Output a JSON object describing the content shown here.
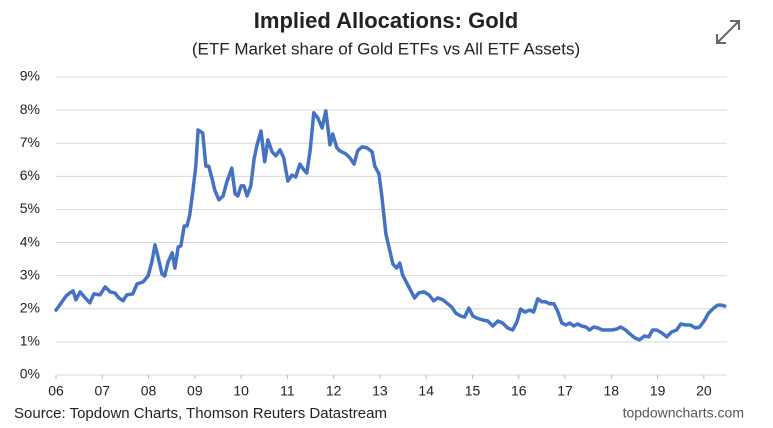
{
  "chart_data": {
    "type": "line",
    "title": "Implied Allocations: Gold",
    "subtitle": "(ETF Market share of Gold ETFs vs All ETF Assets)",
    "source": "Source: Topdown Charts, Thomson Reuters Datastream",
    "credit": "topdowncharts.com",
    "color": "#4472c4",
    "grid": true,
    "xlim": [
      2006,
      2020.5
    ],
    "xticks": [
      {
        "value": 2006,
        "label": "06"
      },
      {
        "value": 2007,
        "label": "07"
      },
      {
        "value": 2008,
        "label": "08"
      },
      {
        "value": 2009,
        "label": "09"
      },
      {
        "value": 2010,
        "label": "10"
      },
      {
        "value": 2011,
        "label": "11"
      },
      {
        "value": 2012,
        "label": "12"
      },
      {
        "value": 2013,
        "label": "13"
      },
      {
        "value": 2014,
        "label": "14"
      },
      {
        "value": 2015,
        "label": "15"
      },
      {
        "value": 2016,
        "label": "16"
      },
      {
        "value": 2017,
        "label": "17"
      },
      {
        "value": 2018,
        "label": "18"
      },
      {
        "value": 2019,
        "label": "19"
      },
      {
        "value": 2020,
        "label": "20"
      }
    ],
    "ylim": [
      0,
      9
    ],
    "yticks": [
      {
        "value": 0,
        "label": "0%"
      },
      {
        "value": 1,
        "label": "1%"
      },
      {
        "value": 2,
        "label": "2%"
      },
      {
        "value": 3,
        "label": "3%"
      },
      {
        "value": 4,
        "label": "4%"
      },
      {
        "value": 5,
        "label": "5%"
      },
      {
        "value": 6,
        "label": "6%"
      },
      {
        "value": 7,
        "label": "7%"
      },
      {
        "value": 8,
        "label": "8%"
      },
      {
        "value": 9,
        "label": "9%"
      }
    ],
    "x": [
      2006.0,
      2006.13,
      2006.22,
      2006.3,
      2006.37,
      2006.43,
      2006.52,
      2006.63,
      2006.73,
      2006.82,
      2006.95,
      2007.06,
      2007.17,
      2007.27,
      2007.36,
      2007.45,
      2007.53,
      2007.66,
      2007.75,
      2007.88,
      2007.99,
      2008.07,
      2008.14,
      2008.2,
      2008.29,
      2008.35,
      2008.42,
      2008.51,
      2008.57,
      2008.64,
      2008.7,
      2008.77,
      2008.83,
      2008.89,
      2008.96,
      2009.02,
      2009.07,
      2009.17,
      2009.24,
      2009.3,
      2009.37,
      2009.43,
      2009.52,
      2009.61,
      2009.69,
      2009.8,
      2009.87,
      2009.93,
      2010.0,
      2010.06,
      2010.13,
      2010.21,
      2010.28,
      2010.34,
      2010.43,
      2010.51,
      2010.58,
      2010.67,
      2010.75,
      2010.84,
      2010.92,
      2011.01,
      2011.1,
      2011.18,
      2011.27,
      2011.36,
      2011.42,
      2011.49,
      2011.57,
      2011.66,
      2011.75,
      2011.83,
      2011.92,
      2011.98,
      2012.07,
      2012.13,
      2012.26,
      2012.35,
      2012.44,
      2012.52,
      2012.61,
      2012.72,
      2012.83,
      2012.89,
      2012.98,
      2013.04,
      2013.13,
      2013.21,
      2013.28,
      2013.36,
      2013.43,
      2013.49,
      2013.58,
      2013.67,
      2013.75,
      2013.84,
      2013.95,
      2014.06,
      2014.16,
      2014.25,
      2014.36,
      2014.44,
      2014.55,
      2014.64,
      2014.75,
      2014.83,
      2014.92,
      2015.01,
      2015.09,
      2015.22,
      2015.33,
      2015.44,
      2015.55,
      2015.65,
      2015.76,
      2015.87,
      2015.96,
      2016.04,
      2016.13,
      2016.24,
      2016.32,
      2016.41,
      2016.5,
      2016.58,
      2016.67,
      2016.76,
      2016.84,
      2016.93,
      2017.02,
      2017.1,
      2017.19,
      2017.27,
      2017.36,
      2017.45,
      2017.53,
      2017.62,
      2017.71,
      2017.81,
      2017.9,
      2018.01,
      2018.12,
      2018.2,
      2018.31,
      2018.4,
      2018.51,
      2018.61,
      2018.72,
      2018.81,
      2018.89,
      2018.98,
      2019.09,
      2019.2,
      2019.3,
      2019.41,
      2019.5,
      2019.61,
      2019.71,
      2019.82,
      2019.91,
      2020.02,
      2020.1,
      2020.21,
      2020.3,
      2020.38,
      2020.45
    ],
    "values": [
      1.96,
      2.21,
      2.39,
      2.48,
      2.54,
      2.27,
      2.51,
      2.33,
      2.18,
      2.45,
      2.42,
      2.66,
      2.51,
      2.48,
      2.33,
      2.24,
      2.42,
      2.45,
      2.75,
      2.81,
      2.99,
      3.41,
      3.93,
      3.6,
      3.05,
      2.99,
      3.41,
      3.69,
      3.23,
      3.87,
      3.9,
      4.5,
      4.5,
      4.83,
      5.59,
      6.31,
      7.4,
      7.31,
      6.31,
      6.31,
      5.95,
      5.59,
      5.29,
      5.41,
      5.83,
      6.25,
      5.47,
      5.41,
      5.71,
      5.71,
      5.41,
      5.71,
      6.53,
      6.92,
      7.37,
      6.44,
      7.1,
      6.74,
      6.62,
      6.8,
      6.56,
      5.86,
      6.04,
      5.98,
      6.37,
      6.19,
      6.1,
      6.77,
      7.92,
      7.76,
      7.46,
      7.98,
      6.95,
      7.28,
      6.86,
      6.77,
      6.68,
      6.56,
      6.37,
      6.77,
      6.89,
      6.86,
      6.74,
      6.31,
      6.07,
      5.41,
      4.26,
      3.78,
      3.35,
      3.23,
      3.38,
      3.02,
      2.78,
      2.54,
      2.33,
      2.48,
      2.51,
      2.42,
      2.24,
      2.33,
      2.27,
      2.18,
      2.05,
      1.87,
      1.78,
      1.75,
      2.02,
      1.78,
      1.72,
      1.66,
      1.63,
      1.48,
      1.63,
      1.57,
      1.42,
      1.36,
      1.6,
      1.99,
      1.9,
      1.96,
      1.9,
      2.3,
      2.21,
      2.21,
      2.15,
      2.15,
      1.93,
      1.57,
      1.51,
      1.57,
      1.48,
      1.54,
      1.48,
      1.45,
      1.36,
      1.45,
      1.42,
      1.36,
      1.36,
      1.36,
      1.39,
      1.45,
      1.36,
      1.24,
      1.12,
      1.06,
      1.18,
      1.15,
      1.36,
      1.36,
      1.27,
      1.15,
      1.3,
      1.36,
      1.54,
      1.51,
      1.51,
      1.42,
      1.45,
      1.66,
      1.87,
      2.02,
      2.11,
      2.11,
      2.08
    ]
  }
}
